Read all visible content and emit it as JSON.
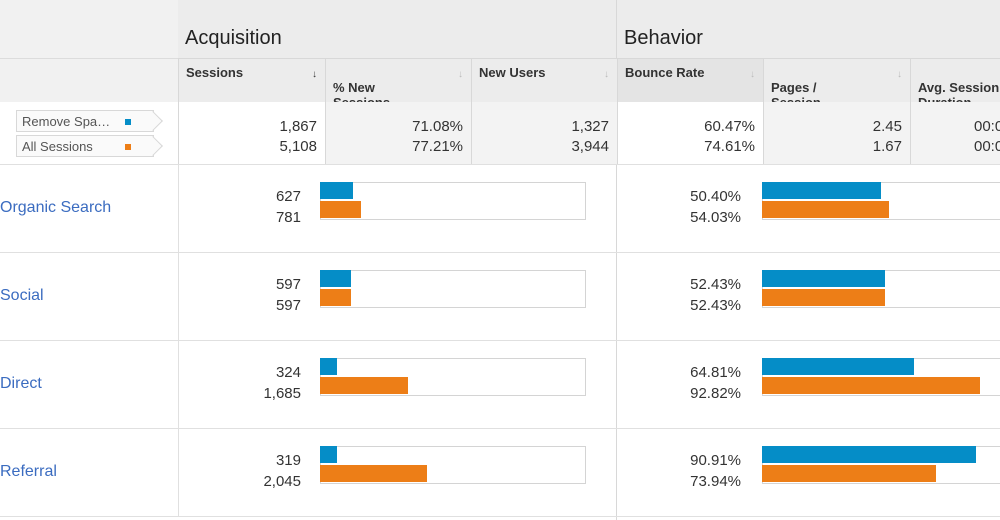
{
  "header": {
    "group_acquisition": "Acquisition",
    "group_behavior": "Behavior",
    "columns": [
      {
        "label": "Sessions",
        "sort": "↓"
      },
      {
        "label": "% New\nSessions",
        "sort": "↓"
      },
      {
        "label": "New Users",
        "sort": "↓"
      },
      {
        "label": "Bounce Rate",
        "sort": "↓"
      },
      {
        "label": "Pages /\nSession",
        "sort": "↓"
      },
      {
        "label": "Avg. Session\nDuration",
        "sort": ""
      }
    ]
  },
  "segments": [
    {
      "label": "Remove Spa…",
      "color": "#058dc7"
    },
    {
      "label": "All Sessions",
      "color": "#ed7e17"
    }
  ],
  "colors": {
    "segment_a": "#058dc7",
    "segment_b": "#ed7e17",
    "link": "#3b6cc0"
  },
  "summary": {
    "sessions": [
      "1,867",
      "5,108"
    ],
    "pct_new": [
      "71.08%",
      "77.21%"
    ],
    "new_users": [
      "1,327",
      "3,944"
    ],
    "bounce": [
      "60.47%",
      "74.61%"
    ],
    "pages": [
      "2.45",
      "1.67"
    ],
    "duration": [
      "00:0",
      "00:0"
    ]
  },
  "rows": [
    {
      "label": "Organic Search",
      "sessions": [
        "627",
        "781"
      ],
      "bounce": [
        "50.40%",
        "54.03%"
      ],
      "sessions_num": [
        627,
        781
      ],
      "bounce_num": [
        50.4,
        54.03
      ]
    },
    {
      "label": "Social",
      "sessions": [
        "597",
        "597"
      ],
      "bounce": [
        "52.43%",
        "52.43%"
      ],
      "sessions_num": [
        597,
        597
      ],
      "bounce_num": [
        52.43,
        52.43
      ]
    },
    {
      "label": "Direct",
      "sessions": [
        "324",
        "1,685"
      ],
      "bounce": [
        "64.81%",
        "92.82%"
      ],
      "sessions_num": [
        324,
        1685
      ],
      "bounce_num": [
        64.81,
        92.82
      ]
    },
    {
      "label": "Referral",
      "sessions": [
        "319",
        "2,045"
      ],
      "bounce": [
        "90.91%",
        "73.94%"
      ],
      "sessions_num": [
        319,
        2045
      ],
      "bounce_num": [
        90.91,
        73.94
      ]
    }
  ]
}
